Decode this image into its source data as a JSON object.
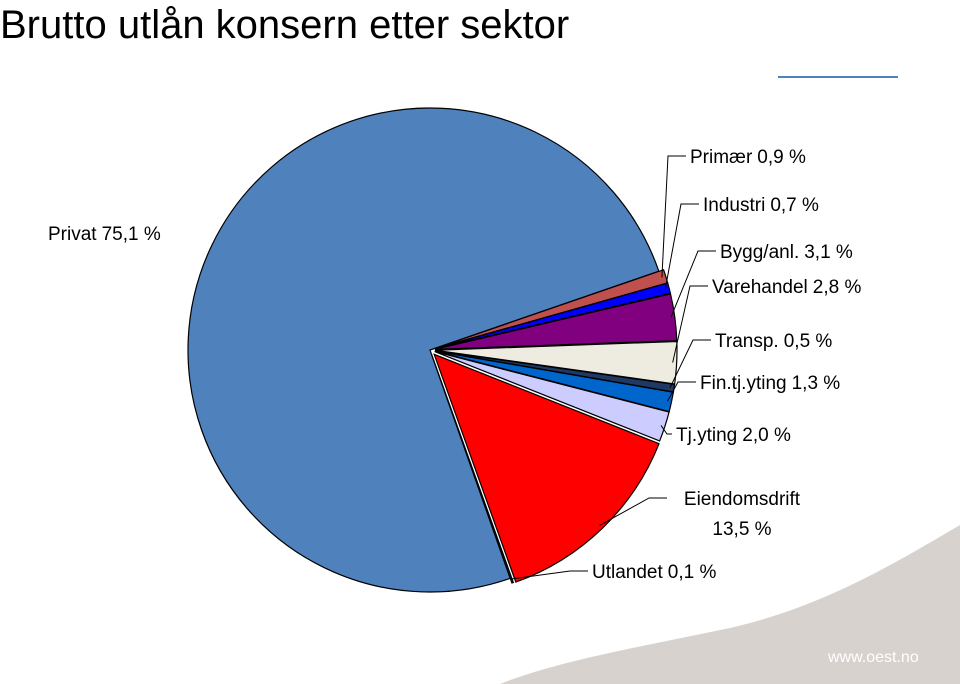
{
  "chart_data": {
    "type": "pie",
    "title": "Brutto utlån konsern etter sektor",
    "categories": [
      "Privat",
      "Primær",
      "Industri",
      "Bygg/anl.",
      "Varehandel",
      "Transp.",
      "Fin.tj.yting",
      "Tj.yting",
      "Eiendomsdrift",
      "Utlandet"
    ],
    "values": [
      75.1,
      0.9,
      0.7,
      3.1,
      2.8,
      0.5,
      1.3,
      2.0,
      13.5,
      0.1
    ],
    "value_labels": [
      "75,1 %",
      "0,9 %",
      "0,7 %",
      "3,1 %",
      "2,8 %",
      "0,5 %",
      "1,3 %",
      "2,0 %",
      "13,5 %",
      "0,1 %"
    ],
    "colors": [
      "#4f81bd",
      "#c0504d",
      "#0000ff",
      "#800080",
      "#eeece1",
      "#1f3864",
      "#0066cc",
      "#ccccff",
      "#ff0000",
      "#1f3864"
    ]
  },
  "footer_text": "www.oest.no"
}
